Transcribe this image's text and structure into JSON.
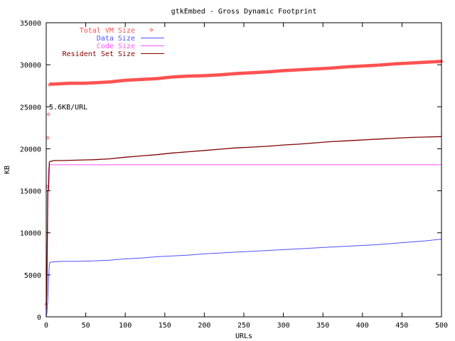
{
  "chart_data": {
    "type": "line",
    "title": "gtkEmbed - Gross Dynamic Footprint",
    "xlabel": "URLs",
    "ylabel": "KB",
    "xlim": [
      0,
      500
    ],
    "ylim": [
      0,
      35000
    ],
    "xticks": [
      0,
      50,
      100,
      150,
      200,
      250,
      300,
      350,
      400,
      450,
      500
    ],
    "yticks": [
      0,
      5000,
      10000,
      15000,
      20000,
      25000,
      30000,
      35000
    ],
    "grid": false,
    "legend_position": "top-left",
    "annotation": "5.6KB/URL",
    "series": [
      {
        "name": "Total VM Size",
        "style": "points",
        "color": "#ff5050",
        "x": [
          0,
          1,
          2,
          3,
          4,
          5,
          10,
          20,
          30,
          40,
          50,
          60,
          70,
          80,
          90,
          100,
          120,
          140,
          160,
          180,
          200,
          220,
          240,
          260,
          280,
          300,
          320,
          340,
          360,
          380,
          400,
          420,
          440,
          460,
          480,
          500
        ],
        "y": [
          1500,
          15500,
          21300,
          24100,
          27600,
          27700,
          27700,
          27750,
          27800,
          27800,
          27800,
          27850,
          27900,
          27950,
          28050,
          28150,
          28250,
          28350,
          28550,
          28650,
          28700,
          28800,
          28950,
          29050,
          29150,
          29300,
          29400,
          29500,
          29600,
          29750,
          29850,
          29950,
          30100,
          30200,
          30300,
          30400
        ]
      },
      {
        "name": "Data Size",
        "style": "line",
        "color": "#5050ff",
        "x": [
          0,
          1,
          2,
          3,
          4,
          5,
          10,
          20,
          40,
          60,
          80,
          100,
          120,
          140,
          160,
          180,
          200,
          220,
          240,
          260,
          280,
          300,
          320,
          340,
          360,
          380,
          400,
          420,
          440,
          460,
          480,
          500
        ],
        "y": [
          0,
          500,
          2000,
          4500,
          6300,
          6500,
          6550,
          6600,
          6600,
          6650,
          6750,
          6900,
          7000,
          7150,
          7250,
          7350,
          7500,
          7600,
          7700,
          7800,
          7900,
          8000,
          8100,
          8200,
          8300,
          8400,
          8500,
          8600,
          8750,
          8900,
          9050,
          9250
        ]
      },
      {
        "name": "Code Size",
        "style": "line",
        "color": "#ff50ff",
        "x": [
          0,
          1,
          2,
          3,
          4,
          5,
          500
        ],
        "y": [
          500,
          3000,
          13000,
          17500,
          18100,
          18100,
          18100
        ]
      },
      {
        "name": "Resident Set Size",
        "style": "line",
        "color": "#800000",
        "x": [
          0,
          1,
          2,
          3,
          4,
          5,
          10,
          20,
          40,
          60,
          80,
          100,
          120,
          140,
          160,
          180,
          200,
          220,
          240,
          260,
          280,
          300,
          320,
          340,
          360,
          380,
          400,
          420,
          440,
          460,
          480,
          500
        ],
        "y": [
          800,
          5000,
          15000,
          15200,
          18400,
          18500,
          18600,
          18600,
          18650,
          18700,
          18800,
          19000,
          19150,
          19300,
          19500,
          19650,
          19800,
          19950,
          20100,
          20200,
          20300,
          20450,
          20550,
          20700,
          20850,
          20950,
          21050,
          21150,
          21250,
          21350,
          21400,
          21450
        ]
      }
    ]
  }
}
